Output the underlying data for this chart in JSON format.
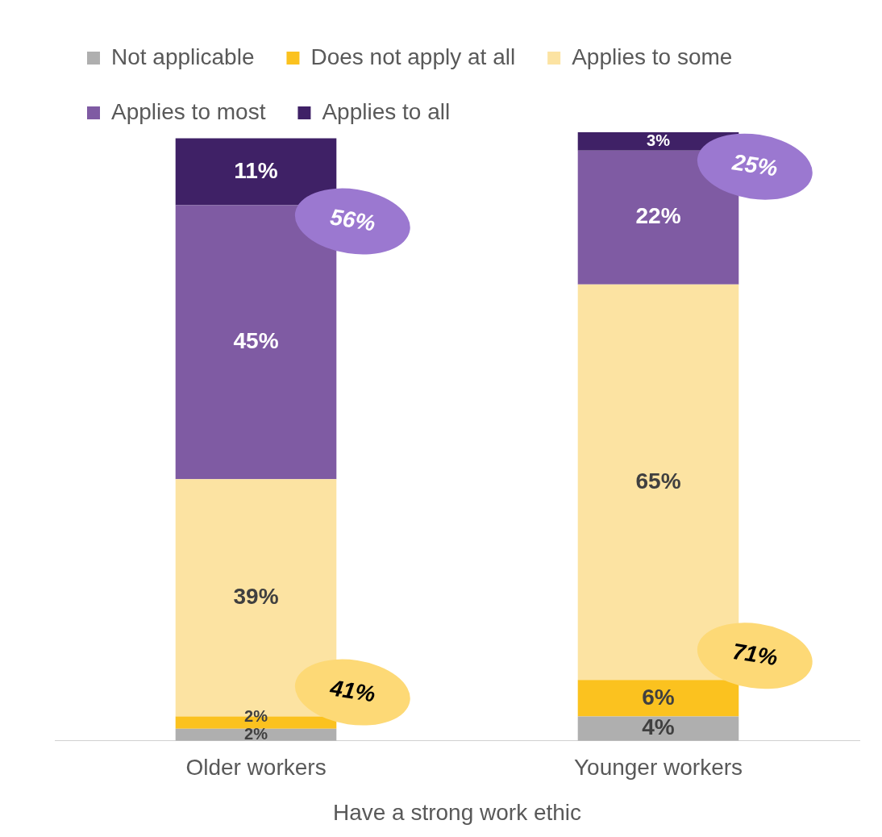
{
  "chart_data": {
    "type": "bar",
    "stacked": true,
    "legend": "top",
    "tick_labels": "x",
    "grid": false,
    "xlabel": "Have a strong work ethic",
    "categories": [
      "Older workers",
      "Younger workers"
    ],
    "series": [
      {
        "name": "Not applicable",
        "color": "#afafaf",
        "values": [
          2,
          4
        ],
        "value_labels": [
          "2%",
          "4%"
        ]
      },
      {
        "name": "Does not apply at all",
        "color": "#fbc21f",
        "values": [
          2,
          6
        ],
        "value_labels": [
          "2%",
          "6%"
        ]
      },
      {
        "name": "Applies to some",
        "color": "#fce3a2",
        "values": [
          39,
          65
        ],
        "value_labels": [
          "39%",
          "65%"
        ]
      },
      {
        "name": "Applies to most",
        "color": "#7f5ba3",
        "values": [
          45,
          22
        ],
        "value_labels": [
          "45%",
          "22%"
        ]
      },
      {
        "name": "Applies to all",
        "color": "#3f2166",
        "values": [
          11,
          3
        ],
        "value_labels": [
          "11%",
          "3%"
        ]
      }
    ],
    "annotations": [
      "56%",
      "41%",
      "25%",
      "71%"
    ]
  }
}
